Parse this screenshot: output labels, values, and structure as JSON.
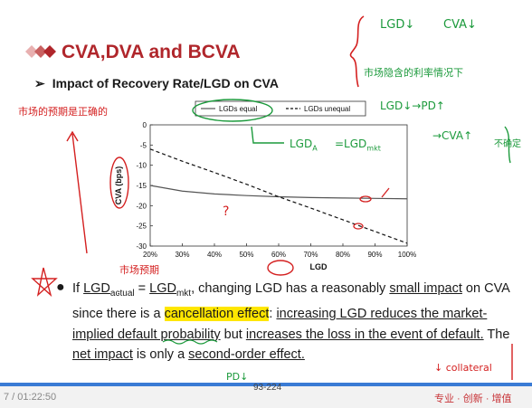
{
  "slide": {
    "title": "CVA,DVA and BCVA",
    "subtitle": "Impact of Recovery Rate/LGD on CVA",
    "page_number": "93-224",
    "player_time": "7 / 01:22:50",
    "slogan": "专业 · 创新 · 增值"
  },
  "bullet": {
    "p1": "If ",
    "lgd_actual": "LGD",
    "sub_actual": "actual",
    "eq": " = ",
    "lgd_mkt": "LGD",
    "sub_mkt": "mkt",
    "p2": ", changing LGD has a reasonably ",
    "small_impact": "small impact",
    "p3": " on CVA since there is a ",
    "cancellation": "cancellation effect",
    "p4": ": ",
    "increasing_lgd": "increasing LGD reduces the market-implied default probability",
    "p5": " but ",
    "increases_loss": "increases the loss in the event of default.",
    "p6": " The ",
    "net_impact": "net impact",
    "p7": " is only a ",
    "second_order": "second-order effect."
  },
  "annotations": {
    "a1": "LGD↓",
    "a2": "CVA↓",
    "a3": "市场隐含的利率情况下",
    "a4": "LGD↓→PD↑",
    "a5": "→CVA↑",
    "a6": "不确定",
    "a7": "市场的预期是正确的",
    "a8": "LGD",
    "a8s": "A",
    "a9": "=LGD",
    "a9s": "mkt",
    "a10": "市场预期",
    "a11": "?",
    "a12": "PD↓",
    "a13": "↓ collateral"
  },
  "colors": {
    "title_red": "#b0262b",
    "annotation_red": "#d42020",
    "annotation_green": "#1c9a3c",
    "highlight": "#ffe600",
    "solid_line": "#555555",
    "dashed_line": "#111111"
  },
  "chart_data": {
    "type": "line",
    "title": "",
    "xlabel": "LGD",
    "ylabel": "CVA (bps)",
    "x": [
      20,
      30,
      40,
      50,
      60,
      70,
      80,
      90,
      100
    ],
    "x_tick_labels": [
      "20%",
      "30%",
      "40%",
      "50%",
      "60%",
      "70%",
      "80%",
      "90%",
      "100%"
    ],
    "xlim": [
      20,
      100
    ],
    "ylim": [
      -30,
      0
    ],
    "y_ticks": [
      0,
      -5,
      -10,
      -15,
      -20,
      -25,
      -30
    ],
    "grid": false,
    "legend_position": "top",
    "series": [
      {
        "name": "LGDs equal",
        "style": "solid",
        "values": [
          -15.0,
          -16.4,
          -17.1,
          -17.5,
          -17.8,
          -18.0,
          -18.1,
          -18.2,
          -18.3
        ]
      },
      {
        "name": "LGDs unequal",
        "style": "dashed",
        "values": [
          -6.0,
          -9.0,
          -11.8,
          -14.7,
          -17.8,
          -20.6,
          -23.5,
          -26.4,
          -29.3
        ]
      }
    ]
  }
}
